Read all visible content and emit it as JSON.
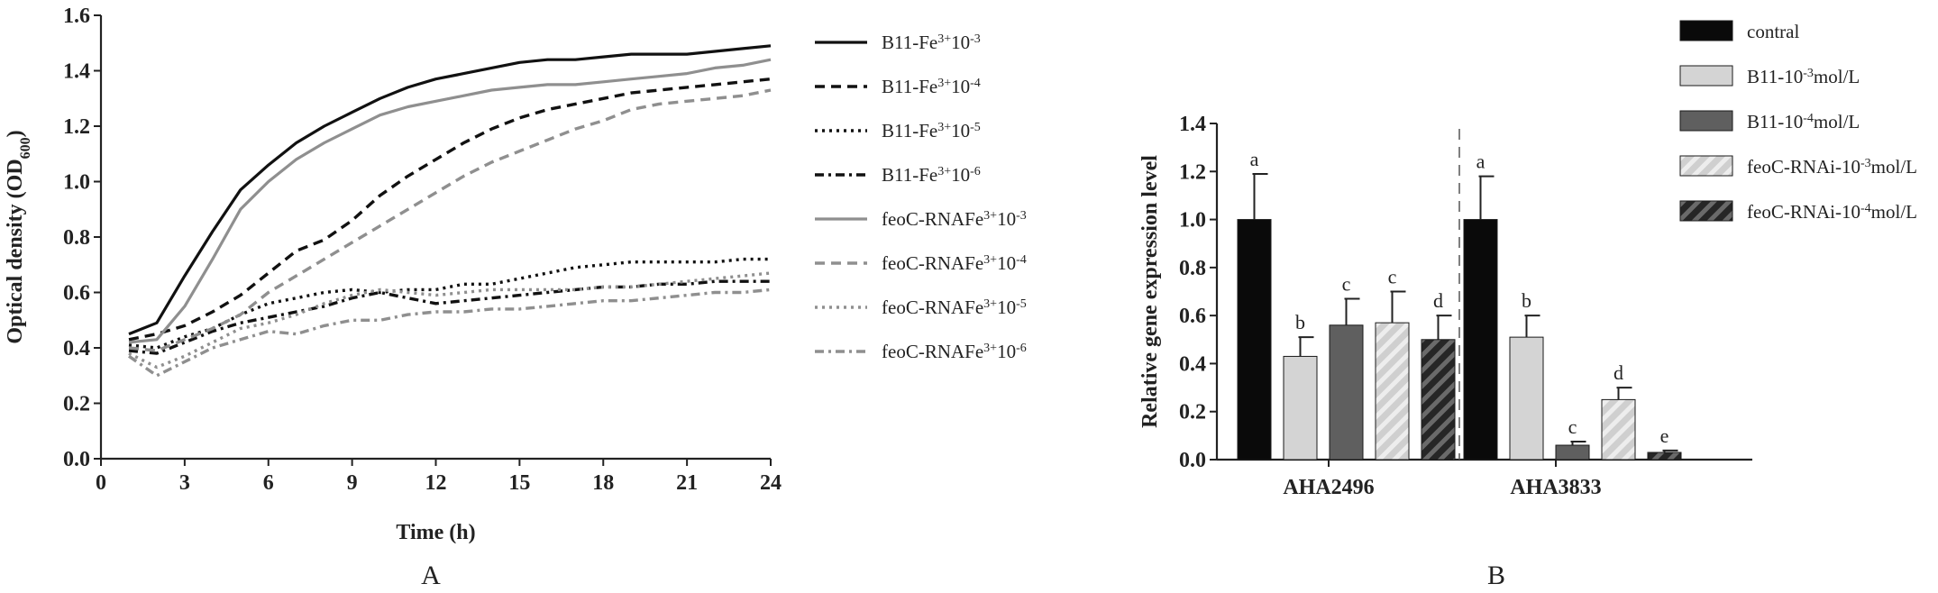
{
  "chart_data": [
    {
      "panel": "A",
      "type": "line",
      "xlabel": "Time (h)",
      "ylabel": "Optical density (OD600)",
      "ylabel_main": "Optical density (OD",
      "ylabel_sub": "600",
      "ylabel_end": ")",
      "xlim": [
        0,
        24
      ],
      "ylim": [
        0.0,
        1.6
      ],
      "xticks": [
        "0",
        "3",
        "6",
        "9",
        "12",
        "15",
        "18",
        "21",
        "24"
      ],
      "yticks": [
        "0.0",
        "0.2",
        "0.4",
        "0.6",
        "0.8",
        "1.0",
        "1.2",
        "1.4",
        "1.6"
      ],
      "grid": false,
      "legend_position": "right",
      "x": [
        1,
        2,
        3,
        4,
        5,
        6,
        7,
        8,
        9,
        10,
        11,
        12,
        13,
        14,
        15,
        16,
        17,
        18,
        19,
        20,
        21,
        22,
        23,
        24
      ],
      "series": [
        {
          "label": {
            "base": "B11-Fe",
            "sup1": "3+",
            "mid": "10",
            "sup2": "-3"
          },
          "color": "#111111",
          "dash": "",
          "width": 3.2,
          "values": [
            0.45,
            0.49,
            0.66,
            0.82,
            0.97,
            1.06,
            1.14,
            1.2,
            1.25,
            1.3,
            1.34,
            1.37,
            1.39,
            1.41,
            1.43,
            1.44,
            1.44,
            1.45,
            1.46,
            1.46,
            1.46,
            1.47,
            1.48,
            1.49
          ]
        },
        {
          "label": {
            "base": "B11-Fe",
            "sup1": "3+",
            "mid": "10",
            "sup2": "-4"
          },
          "color": "#111111",
          "dash": "11,7",
          "width": 3.4,
          "values": [
            0.43,
            0.45,
            0.48,
            0.53,
            0.59,
            0.67,
            0.75,
            0.79,
            0.86,
            0.95,
            1.02,
            1.08,
            1.14,
            1.19,
            1.23,
            1.26,
            1.28,
            1.3,
            1.32,
            1.33,
            1.34,
            1.35,
            1.36,
            1.37
          ]
        },
        {
          "label": {
            "base": "B11-Fe",
            "sup1": "3+",
            "mid": "10",
            "sup2": "-5"
          },
          "color": "#111111",
          "dash": "3,5",
          "width": 3.4,
          "values": [
            0.41,
            0.4,
            0.44,
            0.47,
            0.52,
            0.56,
            0.58,
            0.6,
            0.61,
            0.6,
            0.61,
            0.61,
            0.63,
            0.63,
            0.65,
            0.67,
            0.69,
            0.7,
            0.71,
            0.71,
            0.71,
            0.71,
            0.72,
            0.72
          ]
        },
        {
          "label": {
            "base": "B11-Fe",
            "sup1": "3+",
            "mid": "10",
            "sup2": "-6"
          },
          "color": "#111111",
          "dash": "10,5,3,5",
          "width": 3.4,
          "values": [
            0.39,
            0.38,
            0.42,
            0.46,
            0.49,
            0.51,
            0.53,
            0.55,
            0.58,
            0.6,
            0.58,
            0.56,
            0.57,
            0.58,
            0.59,
            0.6,
            0.61,
            0.62,
            0.62,
            0.63,
            0.63,
            0.64,
            0.64,
            0.64
          ]
        },
        {
          "label": {
            "base": "feoC-RNAFe",
            "sup1": "3+",
            "mid": "10",
            "sup2": "-3"
          },
          "color": "#8f8f8f",
          "dash": "",
          "width": 3.2,
          "values": [
            0.42,
            0.43,
            0.55,
            0.72,
            0.9,
            1.0,
            1.08,
            1.14,
            1.19,
            1.24,
            1.27,
            1.29,
            1.31,
            1.33,
            1.34,
            1.35,
            1.35,
            1.36,
            1.37,
            1.38,
            1.39,
            1.41,
            1.42,
            1.44
          ]
        },
        {
          "label": {
            "base": "feoC-RNAFe",
            "sup1": "3+",
            "mid": "10",
            "sup2": "-4"
          },
          "color": "#8f8f8f",
          "dash": "11,7",
          "width": 3.4,
          "values": [
            0.4,
            0.39,
            0.43,
            0.47,
            0.52,
            0.6,
            0.66,
            0.72,
            0.78,
            0.84,
            0.9,
            0.96,
            1.02,
            1.07,
            1.11,
            1.15,
            1.19,
            1.22,
            1.26,
            1.28,
            1.29,
            1.3,
            1.31,
            1.33
          ]
        },
        {
          "label": {
            "base": "feoC-RNAFe",
            "sup1": "3+",
            "mid": "10",
            "sup2": "-5"
          },
          "color": "#8f8f8f",
          "dash": "3,5",
          "width": 3.4,
          "values": [
            0.38,
            0.33,
            0.37,
            0.42,
            0.47,
            0.49,
            0.52,
            0.56,
            0.59,
            0.61,
            0.6,
            0.59,
            0.6,
            0.61,
            0.61,
            0.61,
            0.61,
            0.62,
            0.62,
            0.63,
            0.64,
            0.65,
            0.66,
            0.67
          ]
        },
        {
          "label": {
            "base": "feoC-RNAFe",
            "sup1": "3+",
            "mid": "10",
            "sup2": "-6"
          },
          "color": "#8f8f8f",
          "dash": "10,5,3,5",
          "width": 3.4,
          "values": [
            0.37,
            0.3,
            0.35,
            0.4,
            0.43,
            0.46,
            0.45,
            0.48,
            0.5,
            0.5,
            0.52,
            0.53,
            0.53,
            0.54,
            0.54,
            0.55,
            0.56,
            0.57,
            0.57,
            0.58,
            0.59,
            0.6,
            0.6,
            0.61
          ]
        }
      ]
    },
    {
      "panel": "B",
      "type": "bar",
      "ylabel": "Relative gene expression level",
      "ylim": [
        0.0,
        1.4
      ],
      "yticks": [
        "0.0",
        "0.2",
        "0.4",
        "0.6",
        "0.8",
        "1.0",
        "1.2",
        "1.4"
      ],
      "categories": [
        "AHA2496",
        "AHA3833"
      ],
      "legend_position": "top-right",
      "error_bars": true,
      "series": [
        {
          "label": {
            "base": "contral",
            "sup": "",
            "tail": ""
          },
          "color": "#0a0a0a",
          "hatch": false,
          "values": [
            1.0,
            1.0
          ],
          "errors": [
            0.19,
            0.18
          ],
          "letters": [
            "a",
            "a"
          ]
        },
        {
          "label": {
            "base": "B11-10",
            "sup": "-3",
            "tail": "mol/L"
          },
          "color": "#d4d4d4",
          "hatch": false,
          "values": [
            0.43,
            0.51
          ],
          "errors": [
            0.08,
            0.09
          ],
          "letters": [
            "b",
            "b"
          ]
        },
        {
          "label": {
            "base": "B11-10",
            "sup": "-4",
            "tail": "mol/L"
          },
          "color": "#5f5f5f",
          "hatch": false,
          "values": [
            0.56,
            0.06
          ],
          "errors": [
            0.11,
            0.015
          ],
          "letters": [
            "c",
            "c"
          ]
        },
        {
          "label": {
            "base": "feoC-RNAi-10",
            "sup": "-3",
            "tail": "mol/L"
          },
          "color": "#c8c8c8",
          "hatch": true,
          "values": [
            0.57,
            0.25
          ],
          "errors": [
            0.13,
            0.05
          ],
          "letters": [
            "c",
            "d"
          ]
        },
        {
          "label": {
            "base": "feoC-RNAi-10",
            "sup": "-4",
            "tail": "mol/L"
          },
          "color": "#2e2e2e",
          "hatch": true,
          "values": [
            0.5,
            0.03
          ],
          "errors": [
            0.1,
            0.008
          ],
          "letters": [
            "d",
            "e"
          ]
        }
      ]
    }
  ],
  "panel_labels": [
    "A",
    "B"
  ]
}
